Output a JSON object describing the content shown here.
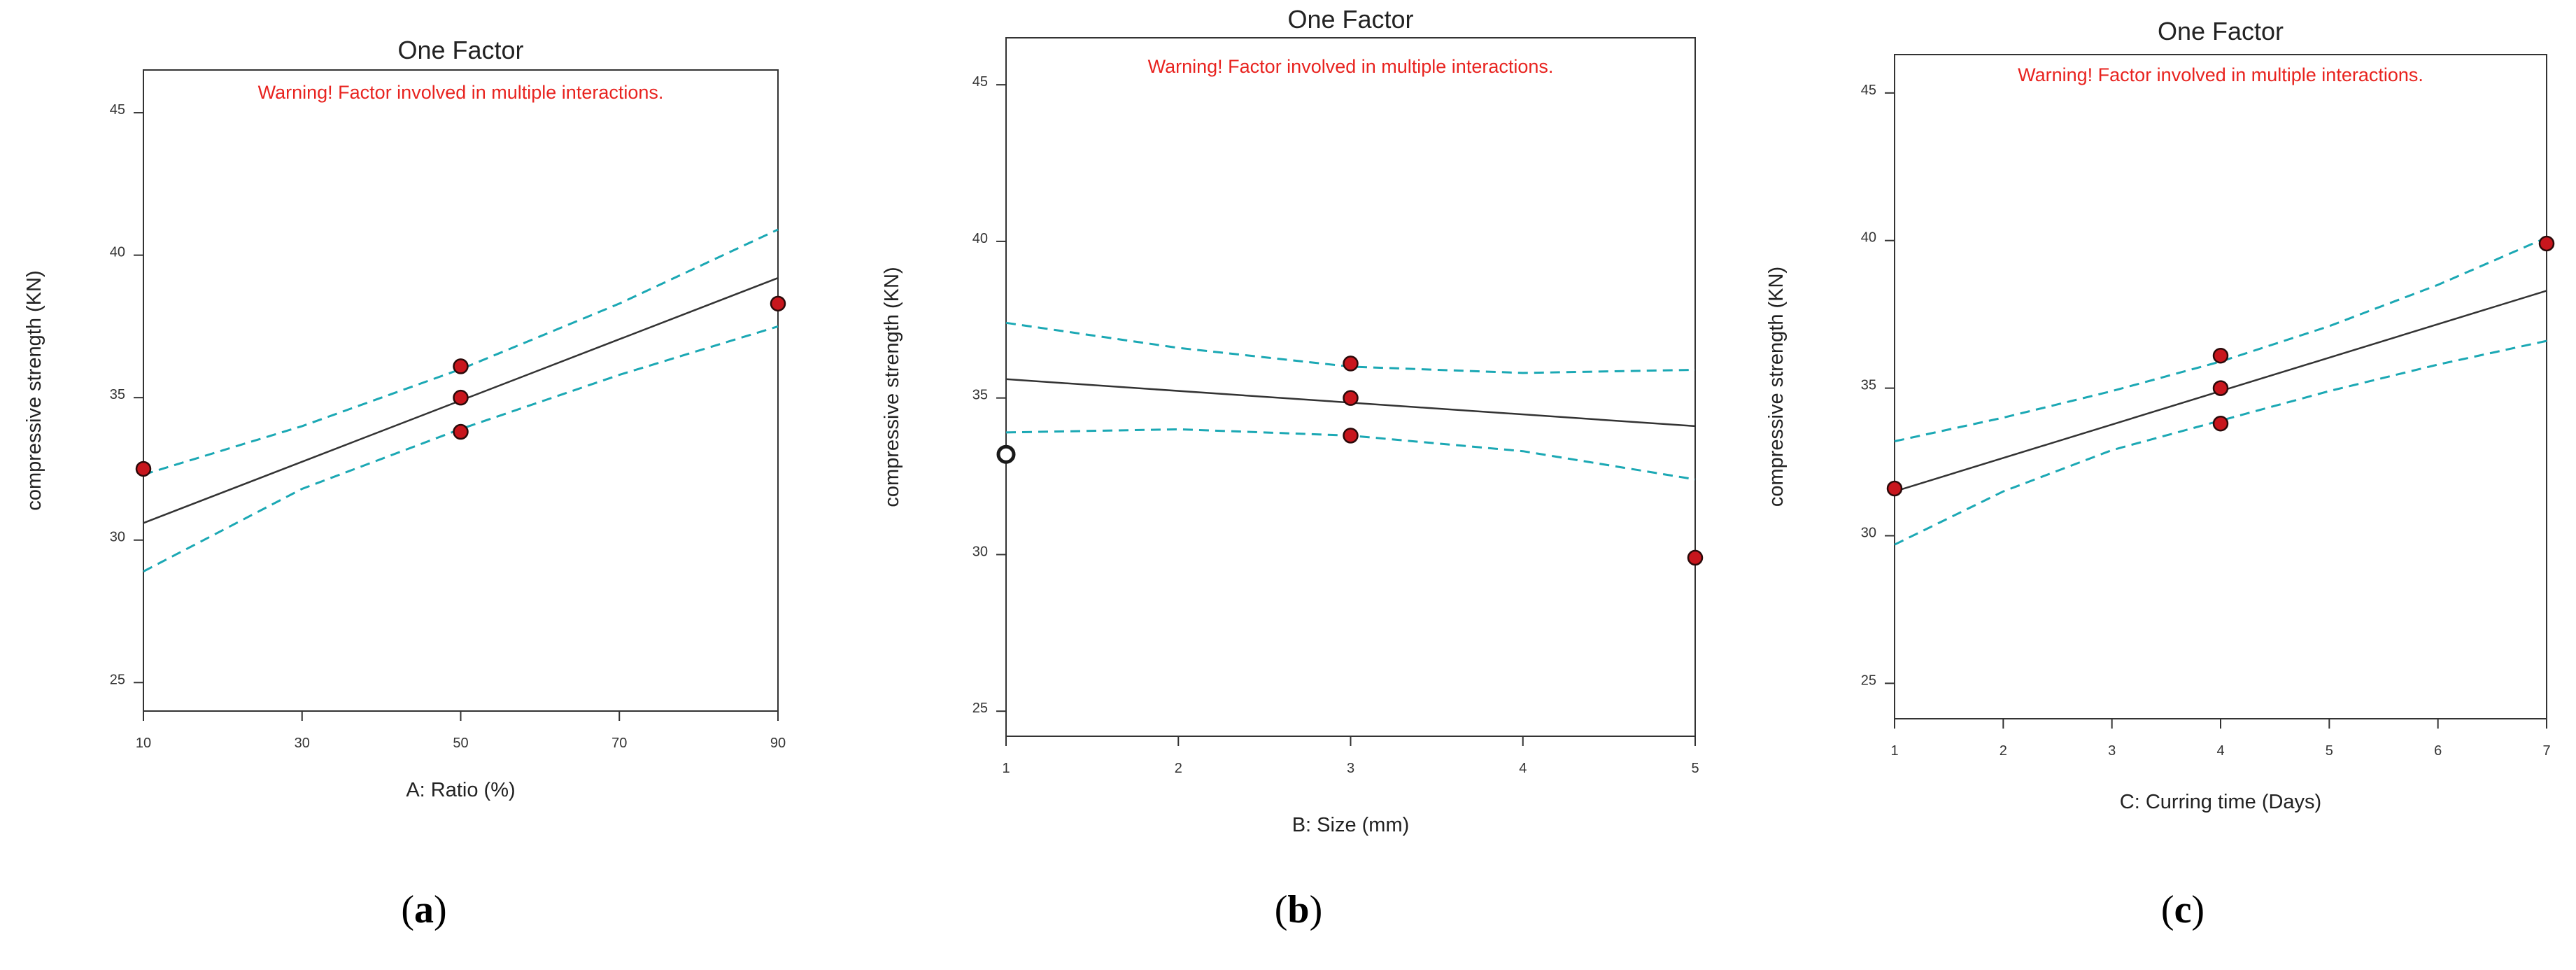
{
  "figure": {
    "panels": [
      {
        "id": "a",
        "caption_letter": "a",
        "title": "One Factor",
        "warning": "Warning! Factor involved in multiple interactions."
      },
      {
        "id": "b",
        "caption_letter": "b",
        "title": "One Factor",
        "warning": "Warning! Factor involved in multiple interactions."
      },
      {
        "id": "c",
        "caption_letter": "c",
        "title": "One Factor",
        "warning": "Warning! Factor involved in multiple interactions."
      }
    ]
  },
  "colors": {
    "warning": "#e8231f",
    "fit_line": "#333333",
    "confidence_band": "#1ba8b4",
    "design_point": "#c8161d"
  },
  "chart_data": [
    {
      "type": "line",
      "title": "One Factor",
      "xlabel": "A: Ratio (%)",
      "ylabel": "compressive strength  (KN)",
      "xlim": [
        10,
        90
      ],
      "ylim": [
        24,
        46.5
      ],
      "xticks": [
        10,
        30,
        50,
        70,
        90
      ],
      "yticks": [
        25,
        30,
        35,
        40,
        45
      ],
      "series": [
        {
          "name": "Prediction",
          "style": "solid",
          "x": [
            10,
            90
          ],
          "y": [
            30.6,
            39.2
          ]
        },
        {
          "name": "95% CI High",
          "style": "dashed",
          "x": [
            10,
            30,
            50,
            70,
            90
          ],
          "y": [
            32.3,
            34.0,
            36.0,
            38.3,
            40.9
          ]
        },
        {
          "name": "95% CI Low",
          "style": "dashed",
          "x": [
            10,
            30,
            50,
            70,
            90
          ],
          "y": [
            28.9,
            31.8,
            33.9,
            35.8,
            37.5
          ]
        },
        {
          "name": "Design Points",
          "style": "points",
          "x": [
            10,
            50,
            50,
            50,
            90
          ],
          "y": [
            32.5,
            36.1,
            35.0,
            33.8,
            38.3
          ]
        }
      ]
    },
    {
      "type": "line",
      "title": "One Factor",
      "xlabel": "B: Size (mm)",
      "ylabel": "compressive strength  (KN)",
      "xlim": [
        1,
        5
      ],
      "ylim": [
        24.2,
        46.5
      ],
      "xticks": [
        1,
        2,
        3,
        4,
        5
      ],
      "yticks": [
        25,
        30,
        35,
        40,
        45
      ],
      "series": [
        {
          "name": "Prediction",
          "style": "solid",
          "x": [
            1,
            5
          ],
          "y": [
            35.6,
            34.1
          ]
        },
        {
          "name": "95% CI High",
          "style": "dashed",
          "x": [
            1,
            2,
            3,
            4,
            5
          ],
          "y": [
            37.4,
            36.6,
            36.0,
            35.8,
            35.9
          ]
        },
        {
          "name": "95% CI Low",
          "style": "dashed",
          "x": [
            1,
            2,
            3,
            4,
            5
          ],
          "y": [
            33.9,
            34.0,
            33.8,
            33.3,
            32.4
          ]
        },
        {
          "name": "Design Points",
          "style": "points",
          "x": [
            3,
            3,
            3,
            5
          ],
          "y": [
            36.1,
            35.0,
            33.8,
            29.9
          ]
        },
        {
          "name": "Open Point",
          "style": "open-point",
          "x": [
            1
          ],
          "y": [
            33.2
          ]
        }
      ]
    },
    {
      "type": "line",
      "title": "One Factor",
      "xlabel": "C: Curring time (Days)",
      "ylabel": "compressive strength  (KN)",
      "xlim": [
        1,
        7
      ],
      "ylim": [
        23.8,
        46.3
      ],
      "xticks": [
        1,
        2,
        3,
        4,
        5,
        6,
        7
      ],
      "yticks": [
        25,
        30,
        35,
        40,
        45
      ],
      "series": [
        {
          "name": "Prediction",
          "style": "solid",
          "x": [
            1,
            7
          ],
          "y": [
            31.5,
            38.3
          ]
        },
        {
          "name": "95% CI High",
          "style": "dashed",
          "x": [
            1,
            2,
            3,
            4,
            5,
            6,
            7
          ],
          "y": [
            33.2,
            34.0,
            34.9,
            35.9,
            37.1,
            38.5,
            40.1
          ]
        },
        {
          "name": "95% CI Low",
          "style": "dashed",
          "x": [
            1,
            2,
            3,
            4,
            5,
            6,
            7
          ],
          "y": [
            29.7,
            31.5,
            32.9,
            33.9,
            34.9,
            35.8,
            36.6
          ]
        },
        {
          "name": "Design Points",
          "style": "points",
          "x": [
            1,
            4,
            4,
            4,
            7
          ],
          "y": [
            31.6,
            36.1,
            35.0,
            33.8,
            39.9
          ]
        }
      ]
    }
  ]
}
